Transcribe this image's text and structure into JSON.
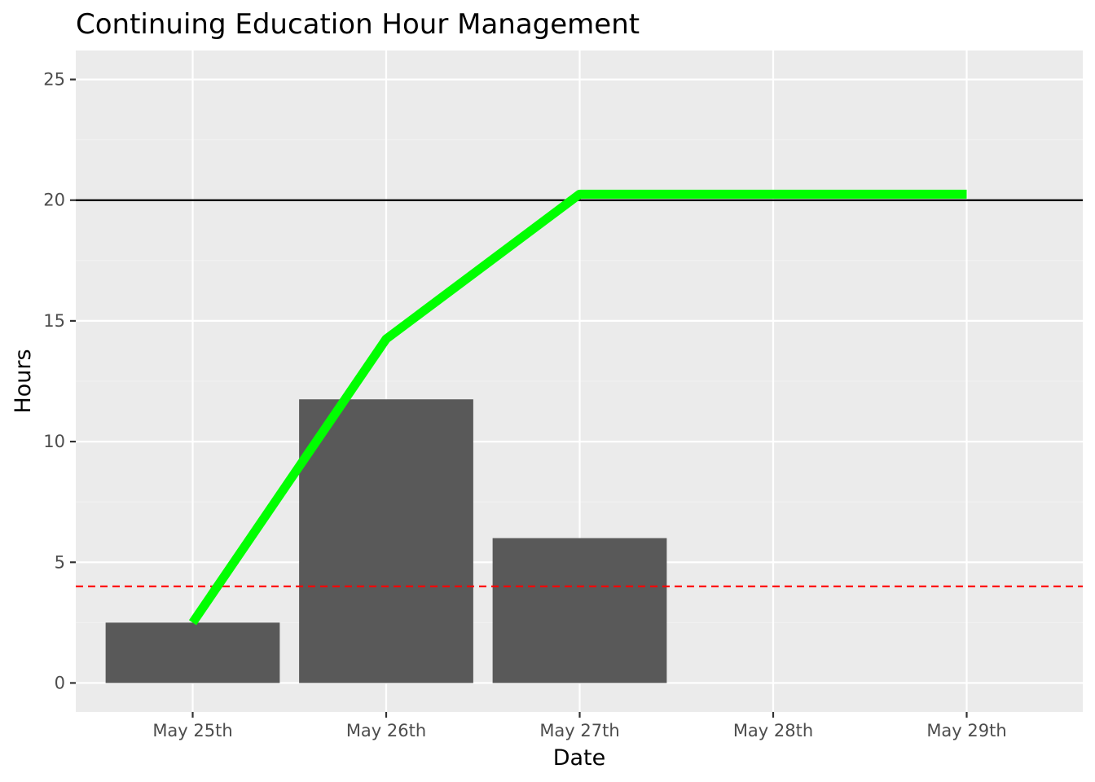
{
  "chart_data": {
    "type": "bar",
    "title": "Continuing Education Hour Management",
    "xlabel": "Date",
    "ylabel": "Hours",
    "categories": [
      "May 25th",
      "May 26th",
      "May 27th",
      "May 28th",
      "May 29th"
    ],
    "yticks": [
      "0",
      "5",
      "10",
      "15",
      "20",
      "25"
    ],
    "ylim": [
      -1.2,
      26.2
    ],
    "grid": true,
    "series": [
      {
        "kind": "bar",
        "values": [
          2.5,
          11.75,
          6.0,
          null,
          null
        ],
        "color": "#595959"
      },
      {
        "kind": "line",
        "values": [
          2.5,
          14.25,
          20.25,
          20.25,
          20.25
        ],
        "color": "#00ff00"
      }
    ],
    "reference_lines": [
      {
        "y": 20,
        "style": "solid",
        "color": "#000000"
      },
      {
        "y": 4,
        "style": "dashed",
        "color": "#ff0000"
      }
    ],
    "colors": {
      "panel_background": "#ebebeb",
      "grid_major": "#ffffff",
      "grid_minor": "#f2f2f2",
      "tick_text": "#4d4d4d"
    }
  }
}
